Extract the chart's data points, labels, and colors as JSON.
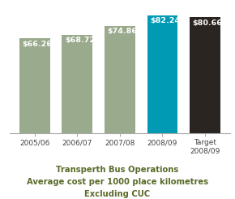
{
  "categories": [
    "2005/06",
    "2006/07",
    "2007/08",
    "2008/09",
    "Target\n2008/09"
  ],
  "values": [
    66.26,
    68.72,
    74.86,
    82.24,
    80.66
  ],
  "bar_colors": [
    "#9aaa8c",
    "#9aaa8c",
    "#9aaa8c",
    "#009ab4",
    "#2a2520"
  ],
  "labels": [
    "$66.26",
    "$68.72",
    "$74.86",
    "$82.24",
    "$80.66"
  ],
  "label_color": "#ffffff",
  "title_line1": "Transperth Bus Operations",
  "title_line2": "Average cost per 1000 place kilometres",
  "title_line3": "Excluding CUC",
  "title_color": "#5a6b2a",
  "title_fontsize": 7.2,
  "label_fontsize": 6.8,
  "tick_fontsize": 6.5,
  "ylim": [
    0,
    90
  ],
  "background_color": "#ffffff"
}
